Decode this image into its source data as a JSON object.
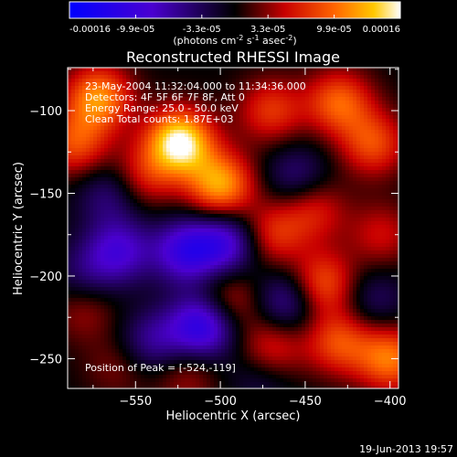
{
  "chart_data": {
    "type": "heatmap",
    "title": "Reconstructed RHESSI Image",
    "xlabel": "Heliocentric X (arcsec)",
    "ylabel": "Heliocentric Y (arcsec)",
    "xlim": [
      -590,
      -395
    ],
    "ylim": [
      -268,
      -74
    ],
    "x_ticks": [
      -550,
      -500,
      -450,
      -400
    ],
    "y_ticks": [
      -100,
      -150,
      -200,
      -250
    ],
    "colorbar": {
      "range": [
        -0.00016,
        0.00016
      ],
      "tick_labels": [
        "-0.00016",
        "-9.9e-05",
        "-3.3e-05",
        "3.3e-05",
        "9.9e-05",
        "0.00016"
      ],
      "unit_main": "(photons cm",
      "unit_sup1": "-2",
      "unit_mid": " s",
      "unit_sup2": "-1",
      "unit_tail": " asec",
      "unit_sup3": "-2",
      "unit_close": ")"
    },
    "annotations": [
      "23-May-2004 11:32:04.000 to 11:34:36.000",
      "Detectors: 4F 5F 6F 7F 8F, Att 0",
      "Energy Range: 25.0 - 50.0 keV",
      "Clean     Total counts: 1.87E+03"
    ],
    "peak_label": "Position of Peak = [-524,-119]",
    "peak": [
      -524,
      -119
    ],
    "sources": [
      {
        "x": -524,
        "y": -119,
        "v": 0.00016
      },
      {
        "x": -572,
        "y": -92,
        "v": 0.00011
      },
      {
        "x": -470,
        "y": -100,
        "v": 7e-05
      },
      {
        "x": -430,
        "y": -95,
        "v": 9e-05
      },
      {
        "x": -410,
        "y": -120,
        "v": 8e-05
      },
      {
        "x": -500,
        "y": -145,
        "v": 0.00012
      },
      {
        "x": -545,
        "y": -140,
        "v": 6e-05
      },
      {
        "x": -585,
        "y": -120,
        "v": 8e-05
      },
      {
        "x": -470,
        "y": -175,
        "v": 7e-05
      },
      {
        "x": -445,
        "y": -160,
        "v": 6e-05
      },
      {
        "x": -440,
        "y": -205,
        "v": 9e-05
      },
      {
        "x": -405,
        "y": -175,
        "v": 5e-05
      },
      {
        "x": -400,
        "y": -250,
        "v": 0.0001
      },
      {
        "x": -430,
        "y": -240,
        "v": 8e-05
      },
      {
        "x": -470,
        "y": -245,
        "v": 7e-05
      },
      {
        "x": -580,
        "y": -220,
        "v": 4e-05
      },
      {
        "x": -560,
        "y": -255,
        "v": 3e-05
      },
      {
        "x": -520,
        "y": -260,
        "v": 4e-05
      },
      {
        "x": -495,
        "y": -215,
        "v": 6e-05
      },
      {
        "x": -560,
        "y": -185,
        "v": -8e-05
      },
      {
        "x": -520,
        "y": -185,
        "v": -0.0001
      },
      {
        "x": -495,
        "y": -180,
        "v": -9e-05
      },
      {
        "x": -510,
        "y": -230,
        "v": -0.00012
      },
      {
        "x": -460,
        "y": -215,
        "v": -7e-05
      },
      {
        "x": -565,
        "y": -150,
        "v": -5e-05
      },
      {
        "x": -540,
        "y": -240,
        "v": -6e-05
      },
      {
        "x": -455,
        "y": -140,
        "v": -5e-05
      },
      {
        "x": -410,
        "y": -215,
        "v": -4e-05
      },
      {
        "x": -475,
        "y": -260,
        "v": -4e-05
      },
      {
        "x": -580,
        "y": -200,
        "v": -4e-05
      }
    ],
    "footer_date": "19-Jun-2013 19:57"
  }
}
